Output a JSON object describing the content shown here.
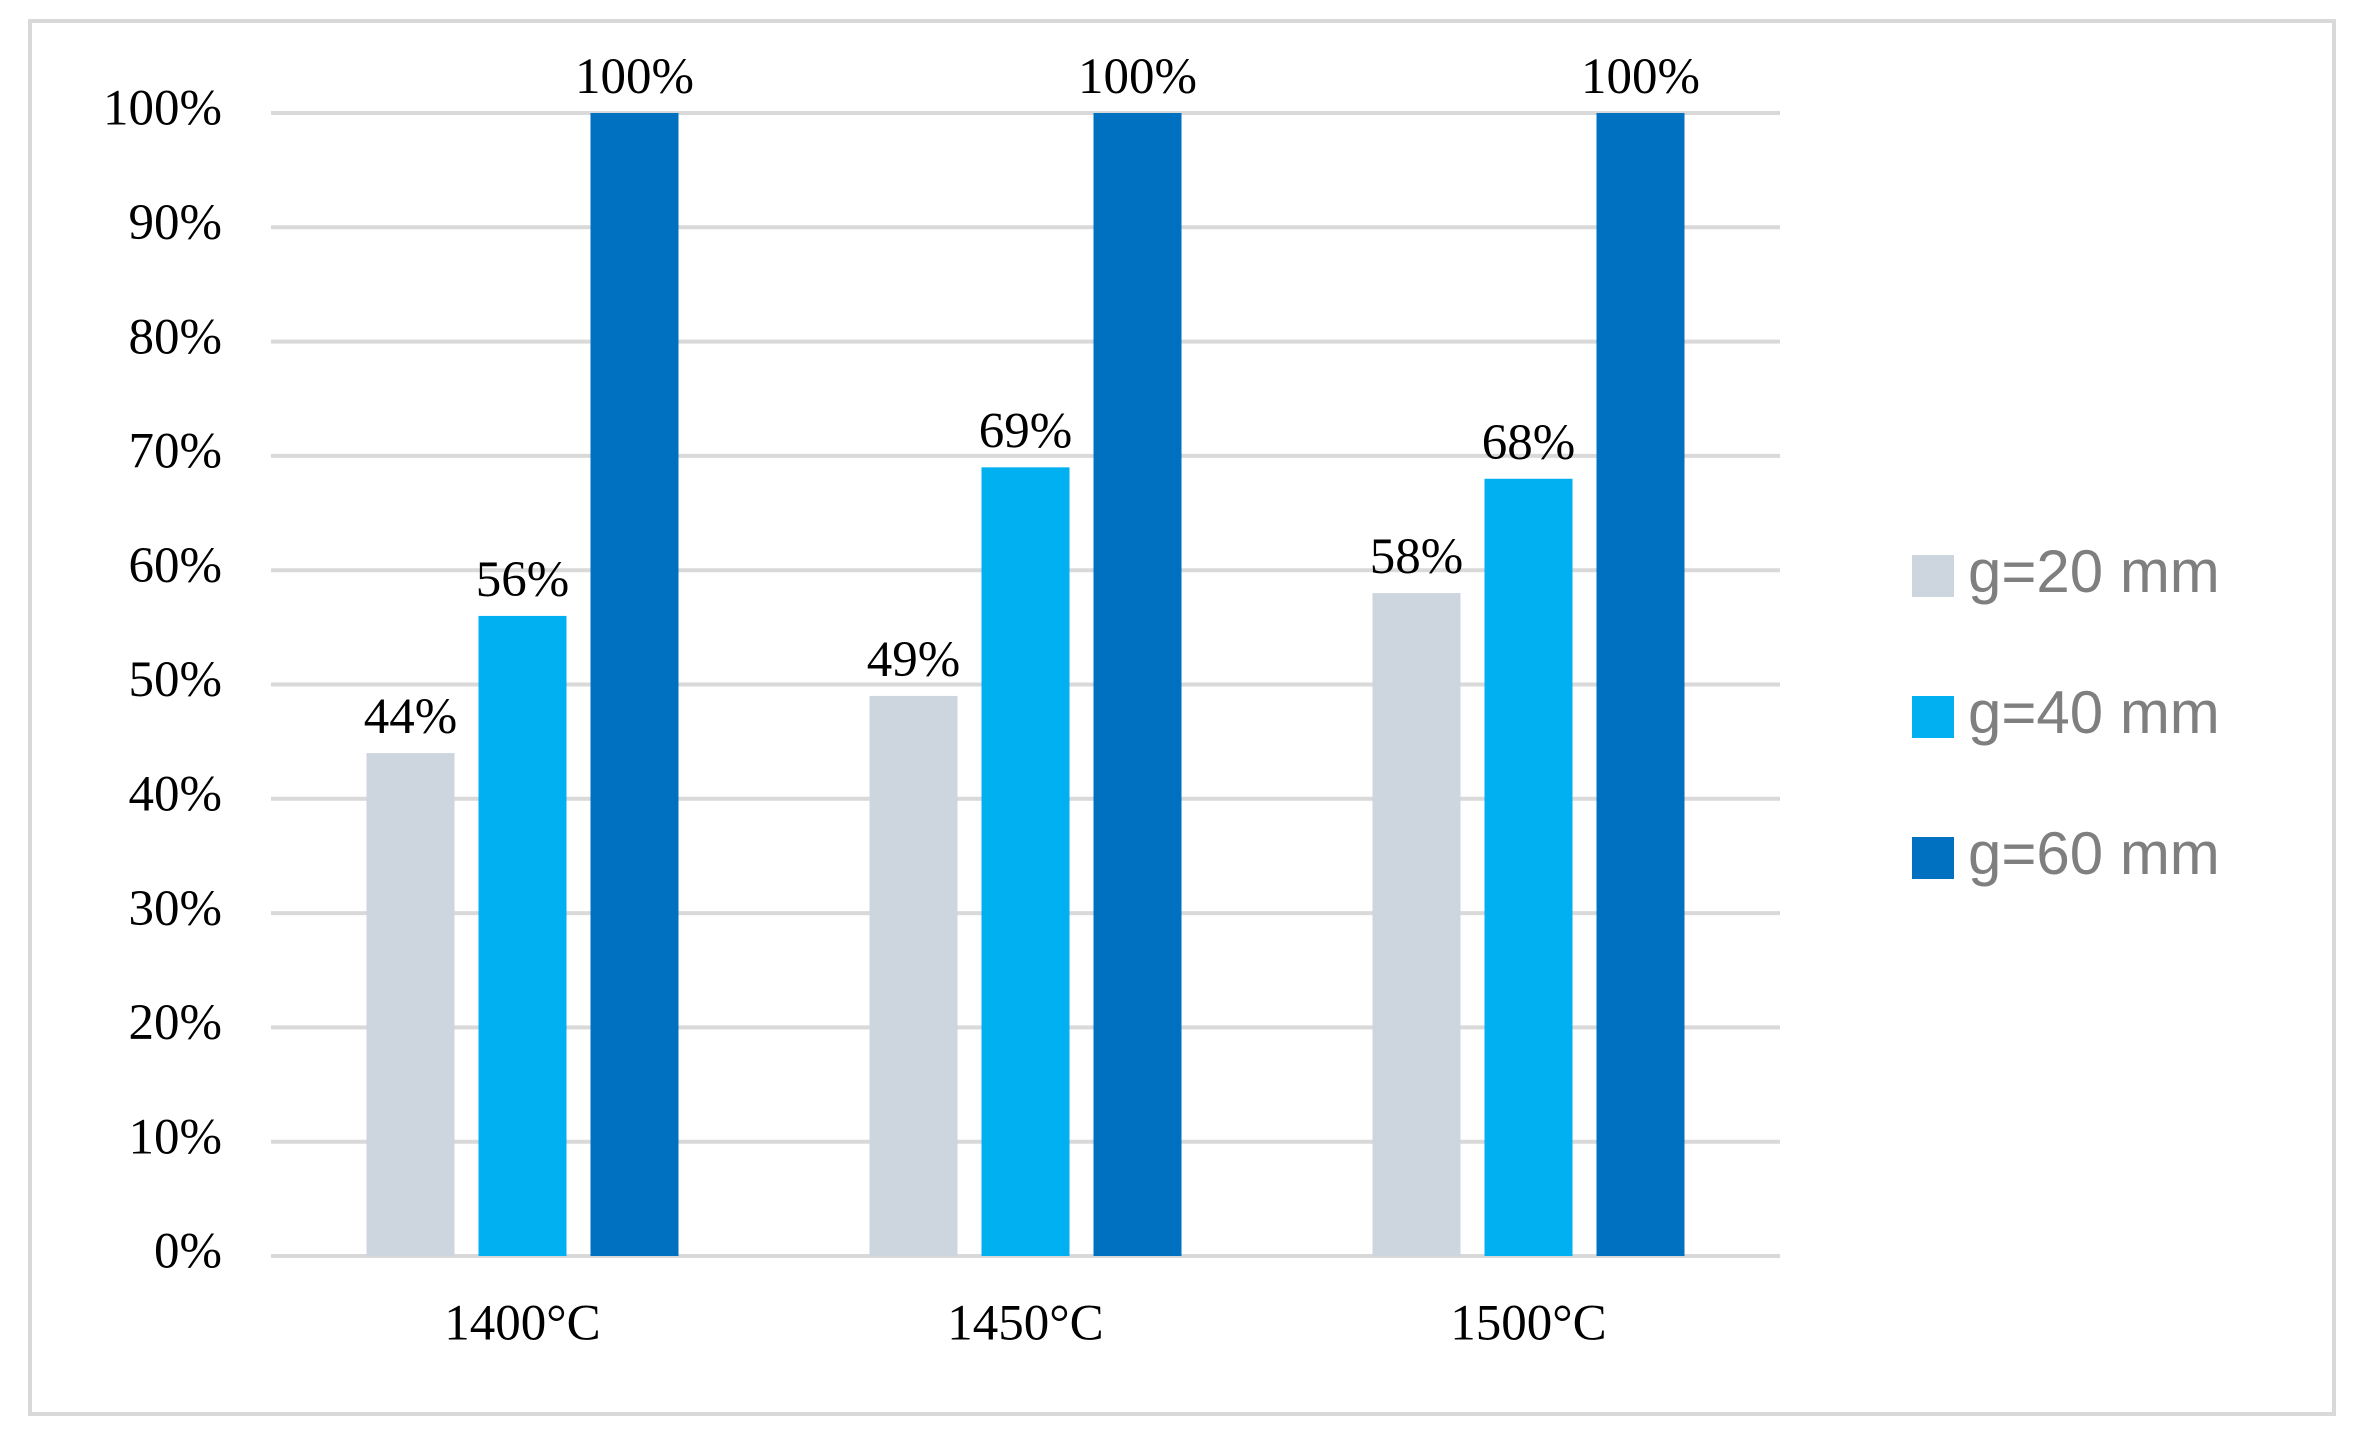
{
  "chart_data": {
    "type": "bar",
    "categories": [
      "1400°C",
      "1450°C",
      "1500°C"
    ],
    "series": [
      {
        "name": "g=20 mm",
        "color": "#cdd5df",
        "values": [
          44,
          49,
          58
        ],
        "value_labels": [
          "44%",
          "49%",
          "58%"
        ]
      },
      {
        "name": "g=40 mm",
        "color": "#00b0f0",
        "values": [
          56,
          69,
          68
        ],
        "value_labels": [
          "56%",
          "69%",
          "68%"
        ]
      },
      {
        "name": "g=60 mm",
        "color": "#0070c0",
        "values": [
          100,
          100,
          100
        ],
        "value_labels": [
          "100%",
          "100%",
          "100%"
        ]
      }
    ],
    "ylim": [
      0,
      100
    ],
    "yticks": [
      {
        "value": 0,
        "label": "0%"
      },
      {
        "value": 10,
        "label": "10%"
      },
      {
        "value": 20,
        "label": "20%"
      },
      {
        "value": 30,
        "label": "30%"
      },
      {
        "value": 40,
        "label": "40%"
      },
      {
        "value": 50,
        "label": "50%"
      },
      {
        "value": 60,
        "label": "60%"
      },
      {
        "value": 70,
        "label": "70%"
      },
      {
        "value": 80,
        "label": "80%"
      },
      {
        "value": 90,
        "label": "90%"
      },
      {
        "value": 100,
        "label": "100%"
      }
    ],
    "grid": true,
    "legend": "right"
  }
}
